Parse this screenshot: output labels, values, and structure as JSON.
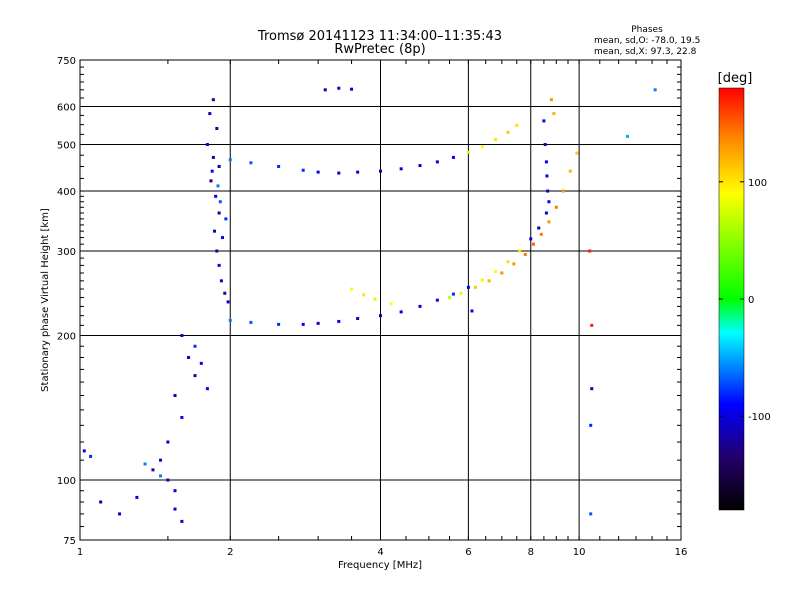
{
  "chart_data": {
    "type": "scatter",
    "title": "Tromsø 20141123 11:34:00–11:35:43",
    "subtitle": "RwPretec (8p)",
    "xlabel": "Frequency [MHz]",
    "ylabel": "Stationary phase Virtual Height [km]",
    "x_scale": "log",
    "y_scale": "log",
    "xlim": [
      1,
      16
    ],
    "ylim": [
      75,
      750
    ],
    "x_ticks": [
      1,
      2,
      4,
      6,
      8,
      10,
      16
    ],
    "y_ticks": [
      75,
      100,
      200,
      300,
      400,
      500,
      600,
      750
    ],
    "x_gridlines": [
      2,
      4,
      6,
      8,
      10
    ],
    "y_gridlines": [
      100,
      200,
      300,
      400,
      500,
      600
    ],
    "grid": true,
    "phase_stats": {
      "heading": "Phases",
      "line_o": "mean, sd,O: -78.0, 19.5",
      "line_x": "mean, sd,X: 97.3, 22.8"
    },
    "colorbar": {
      "label": "[deg]",
      "range": [
        -180,
        180
      ],
      "ticks": [
        100,
        0,
        -100
      ],
      "tick_labels": [
        "100",
        "0",
        "-100"
      ],
      "colors": [
        "#ff0000",
        "#ff8800",
        "#ffff00",
        "#00ff00",
        "#00ffff",
        "#0000ff",
        "#220066",
        "#000000"
      ]
    },
    "series": [
      {
        "points": [
          [
            1.85,
            620,
            -120
          ],
          [
            1.82,
            580,
            -110
          ],
          [
            1.88,
            540,
            -130
          ],
          [
            1.8,
            500,
            -100
          ],
          [
            1.85,
            470,
            -120
          ],
          [
            1.9,
            450,
            -110
          ],
          [
            1.83,
            420,
            -130
          ],
          [
            1.87,
            390,
            -100
          ],
          [
            1.9,
            360,
            -120
          ],
          [
            1.86,
            330,
            -110
          ],
          [
            1.88,
            300,
            -120
          ],
          [
            1.9,
            280,
            -100
          ],
          [
            1.92,
            260,
            -110
          ],
          [
            1.95,
            245,
            -120
          ],
          [
            1.98,
            235,
            -100
          ],
          [
            1.84,
            440,
            -90
          ],
          [
            1.89,
            410,
            -60
          ],
          [
            1.91,
            380,
            -70
          ],
          [
            1.96,
            350,
            -80
          ],
          [
            1.93,
            320,
            -90
          ]
        ]
      },
      {
        "points": [
          [
            2.0,
            465,
            -60
          ],
          [
            2.2,
            458,
            -70
          ],
          [
            2.5,
            450,
            -80
          ],
          [
            2.8,
            442,
            -80
          ],
          [
            3.0,
            438,
            -90
          ],
          [
            3.3,
            436,
            -100
          ],
          [
            3.6,
            438,
            -100
          ],
          [
            4.0,
            440,
            -110
          ],
          [
            4.4,
            445,
            -100
          ],
          [
            4.8,
            452,
            -110
          ],
          [
            5.2,
            460,
            -100
          ],
          [
            5.6,
            470,
            -90
          ],
          [
            6.0,
            482,
            80
          ],
          [
            6.4,
            495,
            90
          ],
          [
            6.8,
            512,
            100
          ],
          [
            7.2,
            530,
            110
          ],
          [
            7.5,
            548,
            100
          ]
        ]
      },
      {
        "points": [
          [
            2.0,
            215,
            -60
          ],
          [
            2.2,
            213,
            -70
          ],
          [
            2.5,
            211,
            -80
          ],
          [
            2.8,
            211,
            -90
          ],
          [
            3.0,
            212,
            -100
          ],
          [
            3.3,
            214,
            -100
          ],
          [
            3.6,
            217,
            -110
          ],
          [
            4.0,
            220,
            -110
          ],
          [
            4.4,
            224,
            -100
          ],
          [
            4.8,
            230,
            -100
          ],
          [
            5.2,
            237,
            -90
          ],
          [
            5.6,
            244,
            -80
          ],
          [
            6.0,
            252,
            -90
          ],
          [
            6.4,
            261,
            80
          ],
          [
            6.8,
            272,
            90
          ],
          [
            7.2,
            285,
            100
          ],
          [
            7.6,
            300,
            100
          ],
          [
            8.0,
            318,
            -100
          ],
          [
            8.3,
            335,
            -110
          ],
          [
            8.6,
            360,
            -100
          ]
        ]
      },
      {
        "points": [
          [
            3.5,
            250,
            90
          ],
          [
            3.7,
            243,
            100
          ],
          [
            3.9,
            238,
            80
          ],
          [
            4.2,
            233,
            90
          ],
          [
            5.5,
            240,
            70
          ],
          [
            5.8,
            245,
            80
          ],
          [
            6.2,
            252,
            110
          ],
          [
            6.6,
            260,
            120
          ],
          [
            7.0,
            270,
            130
          ],
          [
            7.4,
            282,
            130
          ],
          [
            7.8,
            295,
            140
          ],
          [
            8.1,
            310,
            150
          ],
          [
            8.4,
            325,
            140
          ],
          [
            8.7,
            345,
            130
          ],
          [
            9.0,
            370,
            140
          ],
          [
            9.3,
            400,
            130
          ],
          [
            9.6,
            440,
            120
          ],
          [
            9.9,
            480,
            110
          ],
          [
            8.8,
            620,
            130
          ],
          [
            8.9,
            580,
            120
          ]
        ]
      },
      {
        "points": [
          [
            8.5,
            560,
            -100
          ],
          [
            8.55,
            500,
            -110
          ],
          [
            8.6,
            460,
            -90
          ],
          [
            8.62,
            430,
            -100
          ],
          [
            8.65,
            400,
            -110
          ],
          [
            8.7,
            380,
            -90
          ]
        ]
      },
      {
        "points": [
          [
            1.6,
            200,
            -110
          ],
          [
            1.65,
            180,
            -100
          ],
          [
            1.7,
            165,
            -120
          ],
          [
            1.55,
            150,
            -110
          ],
          [
            1.6,
            135,
            -100
          ],
          [
            1.5,
            120,
            -110
          ],
          [
            1.45,
            110,
            -100
          ],
          [
            1.4,
            105,
            -120
          ],
          [
            1.5,
            100,
            -110
          ],
          [
            1.55,
            95,
            -100
          ],
          [
            1.35,
            108,
            -60
          ],
          [
            1.45,
            102,
            -60
          ],
          [
            1.7,
            190,
            -80
          ],
          [
            1.75,
            175,
            -90
          ],
          [
            1.8,
            155,
            -100
          ]
        ]
      },
      {
        "points": [
          [
            1.02,
            115,
            -100
          ],
          [
            1.05,
            112,
            -80
          ],
          [
            1.1,
            90,
            -110
          ],
          [
            1.2,
            85,
            -100
          ],
          [
            1.3,
            92,
            -100
          ],
          [
            1.55,
            87,
            -100
          ],
          [
            1.6,
            82,
            -110
          ],
          [
            3.1,
            650,
            -110
          ],
          [
            3.3,
            655,
            -110
          ],
          [
            3.5,
            652,
            -100
          ],
          [
            6.1,
            225,
            -100
          ],
          [
            10.5,
            300,
            170
          ],
          [
            10.6,
            210,
            170
          ],
          [
            10.6,
            155,
            -110
          ],
          [
            10.55,
            130,
            -80
          ],
          [
            10.55,
            85,
            -70
          ],
          [
            14.2,
            650,
            -60
          ],
          [
            12.5,
            520,
            -50
          ]
        ]
      }
    ]
  }
}
